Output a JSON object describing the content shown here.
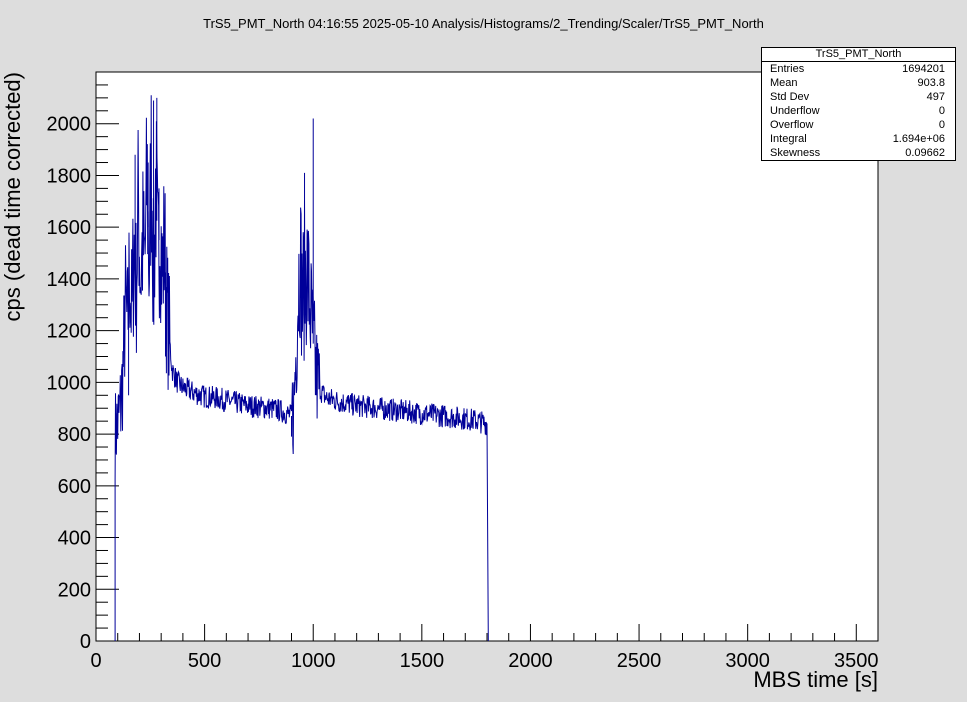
{
  "chart_data": {
    "type": "line",
    "title": "TrS5_PMT_North  04:16:55  2025-05-10  Analysis/Histograms/2_Trending/Scaler/TrS5_PMT_North",
    "xlabel": "MBS time [s]",
    "ylabel": "cps (dead time corrected)",
    "xlim": [
      0,
      3600
    ],
    "ylim": [
      0,
      2200
    ],
    "x_ticks": [
      0,
      500,
      1000,
      1500,
      2000,
      2500,
      3000,
      3500
    ],
    "y_ticks": [
      0,
      200,
      400,
      600,
      800,
      1000,
      1200,
      1400,
      1600,
      1800,
      2000
    ],
    "line_color": "#000099",
    "grid": false,
    "legend": "none",
    "series": [
      {
        "x": [
          88,
          95,
          105,
          115,
          125,
          135,
          145,
          155,
          165,
          175,
          185,
          195,
          205,
          215,
          225,
          235,
          245,
          255,
          265,
          275,
          285,
          295,
          305,
          315,
          325,
          335,
          350,
          375,
          400,
          450,
          500,
          550,
          600,
          650,
          700,
          750,
          800,
          850,
          880,
          900,
          910,
          920,
          930,
          940,
          950,
          960,
          970,
          980,
          990,
          1000,
          1010,
          1020,
          1040,
          1060,
          1100,
          1150,
          1200,
          1300,
          1400,
          1500,
          1600,
          1700,
          1760,
          1800,
          1806
        ],
        "y": [
          800,
          830,
          860,
          920,
          1050,
          1300,
          1200,
          1450,
          1250,
          1550,
          1350,
          1700,
          1400,
          1550,
          1450,
          1800,
          1400,
          1900,
          1350,
          1800,
          1450,
          1650,
          1400,
          1550,
          1300,
          1200,
          1050,
          1000,
          980,
          960,
          945,
          940,
          930,
          920,
          910,
          905,
          900,
          890,
          880,
          870,
          900,
          1100,
          1350,
          1500,
          1300,
          1400,
          1450,
          1350,
          1250,
          1150,
          1050,
          1000,
          960,
          940,
          930,
          920,
          910,
          900,
          890,
          880,
          870,
          860,
          850,
          840,
          0
        ],
        "peaks": [
          [
            180,
            1880
          ],
          [
            240,
            1850
          ],
          [
            265,
            2090
          ],
          [
            280,
            2100
          ],
          [
            290,
            1750
          ],
          [
            960,
            1810
          ],
          [
            1000,
            2020
          ]
        ],
        "dips": [
          [
            95,
            880
          ],
          [
            150,
            950
          ],
          [
            320,
            1100
          ],
          [
            900,
            790
          ],
          [
            1800,
            800
          ]
        ]
      }
    ]
  },
  "stats_box": {
    "name": "TrS5_PMT_North",
    "rows": [
      {
        "label": "Entries",
        "value": "1694201"
      },
      {
        "label": "Mean",
        "value": "903.8"
      },
      {
        "label": "Std Dev",
        "value": "497"
      },
      {
        "label": "Underflow",
        "value": "0"
      },
      {
        "label": "Overflow",
        "value": "0"
      },
      {
        "label": "Integral",
        "value": "1.694e+06"
      },
      {
        "label": "Skewness",
        "value": "0.09662"
      }
    ]
  }
}
